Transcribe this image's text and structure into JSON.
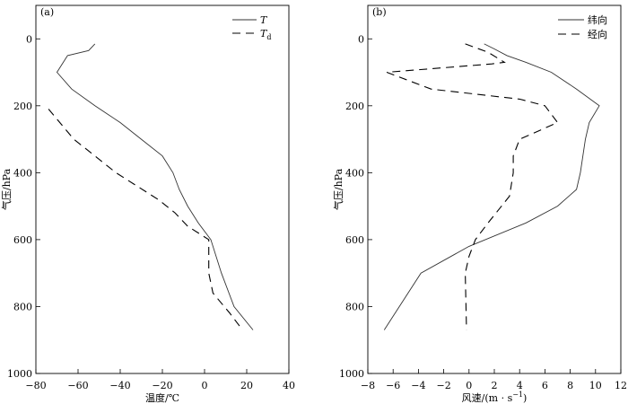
{
  "chart_data": [
    {
      "type": "line",
      "panel_label": "(a)",
      "xlabel": "温度/℃",
      "ylabel": "气压/hPa",
      "xlim": [
        -80,
        40
      ],
      "ylim": [
        1000,
        -100
      ],
      "y_reversed": true,
      "xticks": [
        -80,
        -60,
        -40,
        -20,
        0,
        20,
        40
      ],
      "yticks": [
        0,
        200,
        400,
        600,
        800,
        1000
      ],
      "xtick_labels": [
        "−80",
        "−60",
        "−40",
        "−20",
        "0",
        "20",
        "40"
      ],
      "ytick_labels": [
        "0",
        "200",
        "400",
        "600",
        "800",
        "1000"
      ],
      "legend_position": "top-right",
      "grid": false,
      "series": [
        {
          "name": "T",
          "name_subscript": "",
          "style": "solid",
          "x": [
            -52,
            -55,
            -65,
            -70,
            -63,
            -52,
            -40,
            -30,
            -20,
            -15,
            -12,
            -8,
            -3,
            3,
            8,
            14,
            23
          ],
          "y": [
            15,
            35,
            50,
            100,
            150,
            200,
            250,
            300,
            350,
            400,
            450,
            500,
            550,
            600,
            700,
            800,
            870
          ]
        },
        {
          "name": "T",
          "name_subscript": "d",
          "style": "dashed",
          "x": [
            -74,
            -66,
            -62,
            -52,
            -42,
            -32,
            -22,
            -14,
            -8,
            2,
            2,
            4,
            12,
            18
          ],
          "y": [
            210,
            270,
            300,
            350,
            400,
            440,
            480,
            520,
            560,
            600,
            700,
            760,
            820,
            870
          ]
        }
      ]
    },
    {
      "type": "line",
      "panel_label": "(b)",
      "xlabel": "风速/(m · s",
      "xlabel_superscript": "−1",
      "xlabel_suffix": ")",
      "ylabel": "气压/hPa",
      "xlim": [
        -8,
        12
      ],
      "ylim": [
        1000,
        -100
      ],
      "y_reversed": true,
      "xticks": [
        -8,
        -6,
        -4,
        -2,
        0,
        2,
        4,
        6,
        8,
        10,
        12
      ],
      "yticks": [
        0,
        200,
        400,
        600,
        800,
        1000
      ],
      "xtick_labels": [
        "−8",
        "−6",
        "−4",
        "−2",
        "0",
        "2",
        "4",
        "6",
        "8",
        "10",
        "12"
      ],
      "ytick_labels": [
        "0",
        "200",
        "400",
        "600",
        "800",
        "1000"
      ],
      "legend_position": "top-right",
      "grid": false,
      "series": [
        {
          "name": "纬向",
          "style": "solid",
          "x": [
            1.2,
            2.0,
            3.0,
            4.5,
            6.5,
            8.5,
            10.3,
            9.5,
            9.2,
            8.8,
            8.5,
            7.0,
            4.5,
            0.0,
            -3.8,
            -6.7
          ],
          "y": [
            15,
            30,
            50,
            70,
            100,
            150,
            200,
            250,
            300,
            400,
            450,
            500,
            550,
            620,
            700,
            870
          ]
        },
        {
          "name": "经向",
          "style": "dashed",
          "x": [
            -0.3,
            1.5,
            2.8,
            1.8,
            -6.5,
            -3.0,
            4.0,
            6.0,
            7.0,
            4.0,
            3.5,
            3.5,
            3.2,
            1.5,
            0.5,
            0.0,
            -0.3,
            -0.2
          ],
          "y": [
            15,
            40,
            70,
            75,
            100,
            150,
            180,
            200,
            250,
            300,
            350,
            400,
            470,
            550,
            600,
            650,
            700,
            870
          ]
        }
      ]
    }
  ]
}
